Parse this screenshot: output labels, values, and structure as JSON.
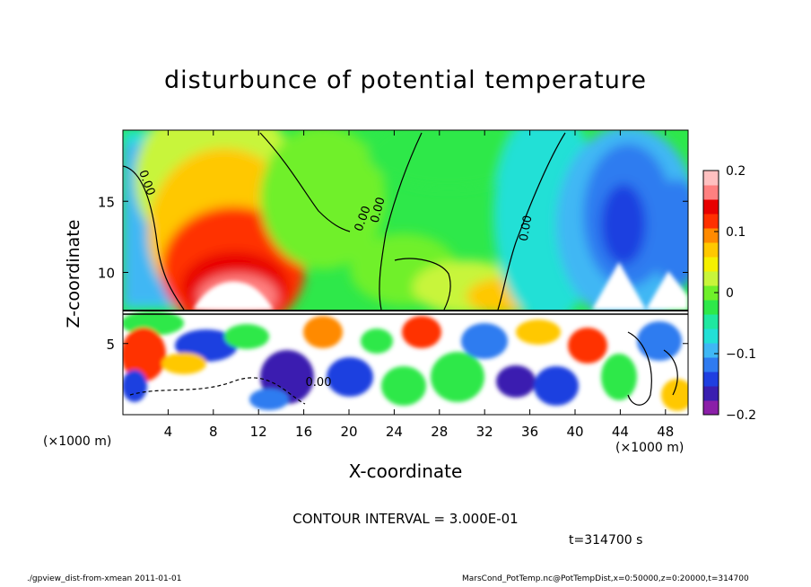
{
  "chart_data": {
    "type": "heatmap",
    "title": "disturbunce of potential temperature",
    "xlabel": "X-coordinate",
    "ylabel": "Z-coordinate",
    "x_unit_label": "(×1000 m)",
    "xlim": [
      0,
      50
    ],
    "ylim": [
      0,
      20
    ],
    "x_ticks": [
      4,
      8,
      12,
      16,
      20,
      24,
      28,
      32,
      36,
      40,
      44,
      48
    ],
    "y_ticks": [
      5,
      10,
      15
    ],
    "colorbar": {
      "range": [
        -0.2,
        0.2
      ],
      "tick_values": [
        0.2,
        0.1,
        0,
        -0.1,
        -0.2
      ],
      "tick_labels": [
        "0.2",
        "0.1",
        "0",
        "−0.1",
        "−0.2"
      ],
      "colors": [
        "#8b1fa8",
        "#3a1fb0",
        "#1f3fe0",
        "#2f7bf0",
        "#3fb7f4",
        "#22e0d6",
        "#1fe8a0",
        "#2ee84a",
        "#6ff02a",
        "#c8f53a",
        "#f5f000",
        "#ffc800",
        "#ff8a00",
        "#ff3000",
        "#e80000",
        "#ff8080",
        "#ffc0c0"
      ]
    },
    "contour_labels": [
      "0.00",
      "0.00",
      "0.00",
      "0.00",
      "0.00"
    ],
    "grid": false
  },
  "notes": {
    "contour_interval": "CONTOUR INTERVAL = 3.000E-01",
    "time": "t=314700 s"
  },
  "footer": {
    "left": "./gpview_dist-from-xmean  2011-01-01",
    "right": "MarsCond_PotTemp.nc@PotTempDist,x=0:50000,z=0:20000,t=314700"
  }
}
